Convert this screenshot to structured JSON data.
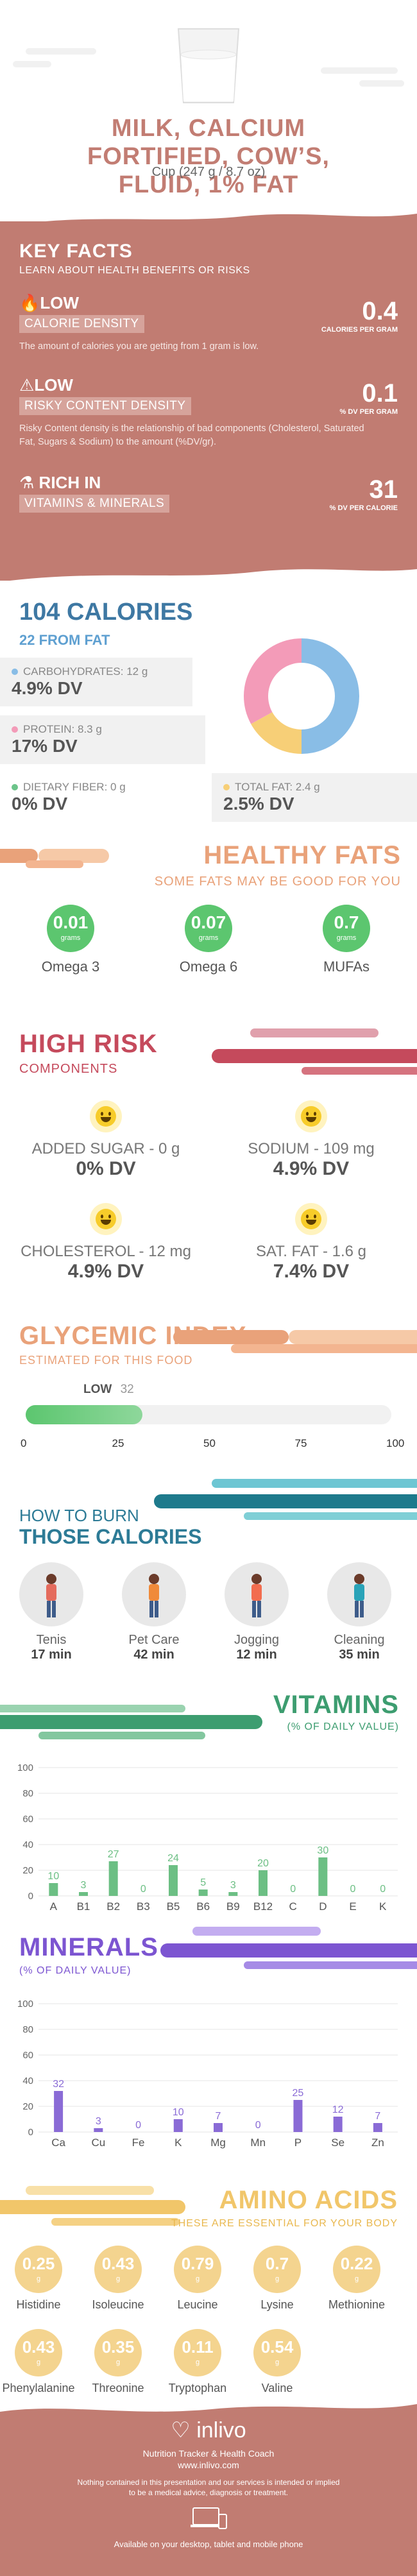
{
  "header": {
    "title_lines": [
      "MILK, CALCIUM",
      "FORTIFIED, COW’S,",
      "FLUID, 1% FAT"
    ],
    "serving": "Cup (247 g / 8.7 oz)"
  },
  "key_facts": {
    "title": "KEY FACTS",
    "subtitle": "LEARN ABOUT HEALTH BENEFITS OR RISKS",
    "items": [
      {
        "badge": "LOW",
        "tag": "CALORIE DENSITY",
        "desc": "The amount of calories you are getting from 1 gram is low.",
        "value": "0.4",
        "unit": "CALORIES PER GRAM"
      },
      {
        "badge": "LOW",
        "tag": "RISKY CONTENT DENSITY",
        "desc": "Risky Content density is the relationship of bad components (Cholesterol, Saturated Fat, Sugars & Sodium) to the amount (%DV/gr).",
        "value": "0.1",
        "unit": "% DV PER GRAM"
      },
      {
        "badge": "RICH  IN",
        "tag": "VITAMINS & MINERALS",
        "desc": "",
        "value": "31",
        "unit": "% DV PER CALORIE"
      }
    ]
  },
  "calories": {
    "title": "104 CALORIES",
    "from_fat": "22 FROM FAT",
    "nutrients": [
      {
        "label": "CARBOHYDRATES: 12 g",
        "dv": "4.9% DV",
        "color": "#89bde6",
        "share": 50
      },
      {
        "label": "PROTEIN: 8.3 g",
        "dv": "17% DV",
        "color": "#f39bb8",
        "share": 33
      },
      {
        "label": "DIETARY FIBER: 0 g",
        "dv": "0% DV",
        "color": "#6cc48a",
        "share": 0
      },
      {
        "label": "TOTAL FAT: 2.4 g",
        "dv": "2.5% DV",
        "color": "#f7cf77",
        "share": 17
      }
    ]
  },
  "healthy_fats": {
    "title": "HEALTHY FATS",
    "subtitle": "SOME FATS MAY BE GOOD FOR YOU",
    "unit": "grams",
    "items": [
      {
        "value": "0.01",
        "name": "Omega 3"
      },
      {
        "value": "0.07",
        "name": "Omega 6"
      },
      {
        "value": "0.7",
        "name": "MUFAs"
      }
    ]
  },
  "high_risk": {
    "title": "HIGH RISK",
    "subtitle": "COMPONENTS",
    "items": [
      {
        "label": "ADDED SUGAR - 0 g",
        "dv": "0% DV"
      },
      {
        "label": "SODIUM - 109 mg",
        "dv": "4.9% DV"
      },
      {
        "label": "CHOLESTEROL - 12 mg",
        "dv": "4.9% DV"
      },
      {
        "label": "SAT. FAT - 1.6 g",
        "dv": "7.4% DV"
      }
    ]
  },
  "glycemic": {
    "title": "GLYCEMIC INDEX",
    "subtitle": "ESTIMATED FOR THIS FOOD",
    "level": "LOW",
    "value": 32,
    "ticks": [
      "0",
      "25",
      "50",
      "75",
      "100"
    ]
  },
  "burn": {
    "title_1": "HOW TO BURN",
    "title_2": "THOSE CALORIES",
    "items": [
      {
        "name": "Tenis",
        "time": "17 min",
        "icon": "tennis-player-icon"
      },
      {
        "name": "Pet Care",
        "time": "42 min",
        "icon": "dog-walker-icon"
      },
      {
        "name": "Jogging",
        "time": "12 min",
        "icon": "jogger-icon"
      },
      {
        "name": "Cleaning",
        "time": "35 min",
        "icon": "cleaner-icon"
      }
    ]
  },
  "chart_data": [
    {
      "type": "bar",
      "title": "VITAMINS",
      "subtitle": "(% OF DAILY VALUE)",
      "color": "#6cbf84",
      "categories": [
        "A",
        "B1",
        "B2",
        "B3",
        "B5",
        "B6",
        "B9",
        "B12",
        "C",
        "D",
        "E",
        "K"
      ],
      "values": [
        10,
        3,
        27,
        0,
        24,
        5,
        3,
        20,
        0,
        30,
        0,
        0
      ],
      "ylim": [
        0,
        100
      ],
      "yticks": [
        0,
        20,
        40,
        60,
        80,
        100
      ]
    },
    {
      "type": "bar",
      "title": "MINERALS",
      "subtitle": "(% OF DAILY VALUE)",
      "color": "#8a6bd6",
      "categories": [
        "Ca",
        "Cu",
        "Fe",
        "K",
        "Mg",
        "Mn",
        "P",
        "Se",
        "Zn"
      ],
      "values": [
        32,
        3,
        0,
        10,
        7,
        0,
        25,
        12,
        7
      ],
      "ylim": [
        0,
        100
      ],
      "yticks": [
        0,
        20,
        40,
        60,
        80,
        100
      ]
    }
  ],
  "amino": {
    "title": "AMINO ACIDS",
    "subtitle": "THESE ARE ESSENTIAL FOR YOUR BODY",
    "unit": "g",
    "items": [
      {
        "value": "0.25",
        "name": "Histidine"
      },
      {
        "value": "0.43",
        "name": "Isoleucine"
      },
      {
        "value": "0.79",
        "name": "Leucine"
      },
      {
        "value": "0.7",
        "name": "Lysine"
      },
      {
        "value": "0.22",
        "name": "Methionine"
      },
      {
        "value": "0.43",
        "name": "Phenylalanine"
      },
      {
        "value": "0.35",
        "name": "Threonine"
      },
      {
        "value": "0.11",
        "name": "Tryptophan"
      },
      {
        "value": "0.54",
        "name": "Valine"
      }
    ]
  },
  "footer": {
    "brand": "inlivo",
    "tagline": "Nutrition Tracker & Health Coach",
    "url": "www.inlivo.com",
    "disclaimer_1": "Nothing contained in this presentation and our services is intended or implied",
    "disclaimer_2": "to be a medical advice, diagnosis or treatment.",
    "available": "Available on your desktop, tablet and mobile phone"
  }
}
